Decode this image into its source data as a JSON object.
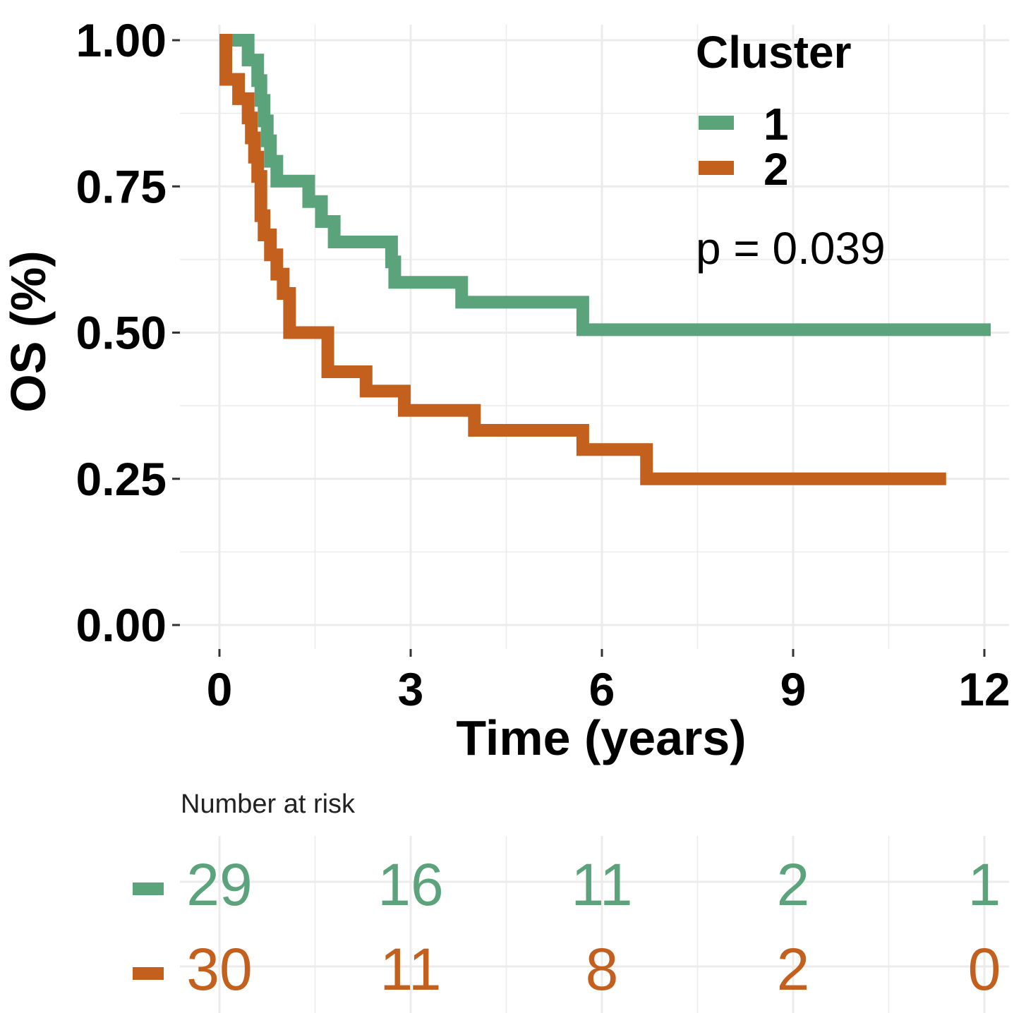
{
  "chart_data": {
    "type": "line",
    "subtype": "kaplan-meier step",
    "xlabel": "Time (years)",
    "ylabel": "OS (%)",
    "xlim": [
      0,
      12
    ],
    "ylim": [
      0,
      1
    ],
    "x_ticks": [
      "0",
      "3",
      "6",
      "9",
      "12"
    ],
    "y_ticks": [
      "0.00",
      "0.25",
      "0.50",
      "0.75",
      "1.00"
    ],
    "grid": true,
    "legend": {
      "title": "Cluster",
      "placement": "top-right"
    },
    "annotation": "p = 0.039",
    "series": [
      {
        "name": "1",
        "color": "#5ba37b",
        "x": [
          0.1,
          0.45,
          0.6,
          0.65,
          0.7,
          0.75,
          0.8,
          0.9,
          1.0,
          1.4,
          1.6,
          1.8,
          2.0,
          2.7,
          2.75,
          3.5,
          3.8,
          5.7,
          12.1
        ],
        "y": [
          1.0,
          0.966,
          0.931,
          0.897,
          0.862,
          0.828,
          0.793,
          0.759,
          0.759,
          0.724,
          0.69,
          0.655,
          0.655,
          0.621,
          0.586,
          0.586,
          0.552,
          0.505,
          0.505
        ]
      },
      {
        "name": "2",
        "color": "#c4601e",
        "x": [
          0.0,
          0.1,
          0.3,
          0.45,
          0.5,
          0.55,
          0.6,
          0.65,
          0.7,
          0.8,
          0.9,
          1.0,
          1.1,
          1.7,
          2.3,
          2.9,
          4.0,
          5.7,
          6.7,
          11.4
        ],
        "y": [
          1.0,
          0.933,
          0.9,
          0.867,
          0.833,
          0.8,
          0.767,
          0.7,
          0.667,
          0.633,
          0.6,
          0.567,
          0.5,
          0.433,
          0.4,
          0.367,
          0.333,
          0.3,
          0.25,
          0.25
        ]
      }
    ],
    "risk_table": {
      "title": "Number at risk",
      "times": [
        "0",
        "3",
        "6",
        "9",
        "12"
      ],
      "rows": [
        {
          "name": "1",
          "color": "#5ba37b",
          "values": [
            "29",
            "16",
            "11",
            "2",
            "1"
          ]
        },
        {
          "name": "2",
          "color": "#c4601e",
          "values": [
            "30",
            "11",
            "8",
            "2",
            "0"
          ]
        }
      ]
    }
  }
}
